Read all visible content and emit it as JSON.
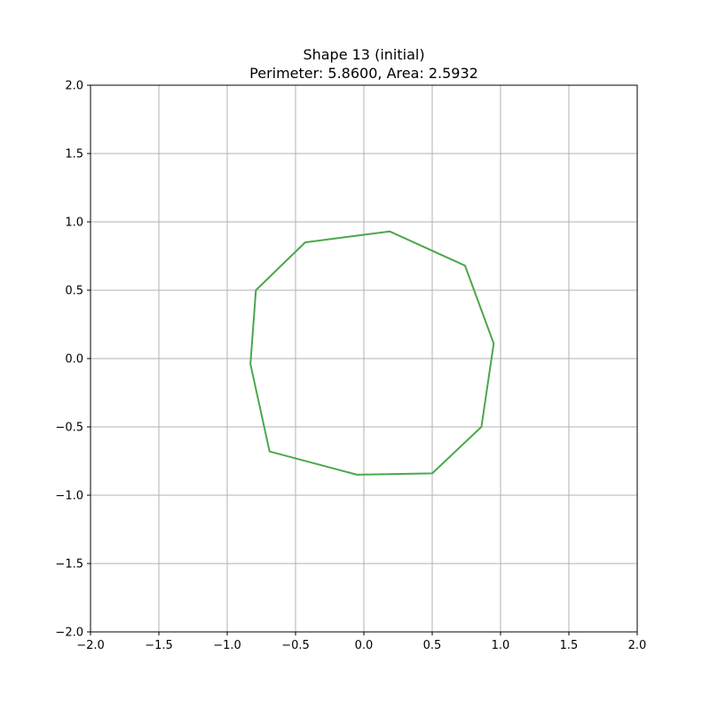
{
  "chart_data": {
    "type": "line",
    "title": "Shape 13 (initial)",
    "subtitle": "Perimeter: 5.8600, Area: 2.5932",
    "xlabel": "",
    "ylabel": "",
    "xlim": [
      -2.0,
      2.0
    ],
    "ylim": [
      -2.0,
      2.0
    ],
    "xticks": [
      -2.0,
      -1.5,
      -1.0,
      -0.5,
      0.0,
      0.5,
      1.0,
      1.5,
      2.0
    ],
    "yticks": [
      -2.0,
      -1.5,
      -1.0,
      -0.5,
      0.0,
      0.5,
      1.0,
      1.5,
      2.0
    ],
    "xtick_labels": [
      "−2.0",
      "−1.5",
      "−1.0",
      "−0.5",
      "0.0",
      "0.5",
      "1.0",
      "1.5",
      "2.0"
    ],
    "ytick_labels": [
      "−2.0",
      "−1.5",
      "−1.0",
      "−0.5",
      "0.0",
      "0.5",
      "1.0",
      "1.5",
      "2.0"
    ],
    "grid": true,
    "series": [
      {
        "closed": true,
        "color": "#4aa84a",
        "points": [
          [
            -0.43,
            0.85
          ],
          [
            0.19,
            0.93
          ],
          [
            0.74,
            0.68
          ],
          [
            0.95,
            0.11
          ],
          [
            0.86,
            -0.5
          ],
          [
            0.5,
            -0.84
          ],
          [
            -0.05,
            -0.85
          ],
          [
            -0.69,
            -0.68
          ],
          [
            -0.83,
            -0.04
          ],
          [
            -0.79,
            0.5
          ]
        ]
      }
    ]
  }
}
